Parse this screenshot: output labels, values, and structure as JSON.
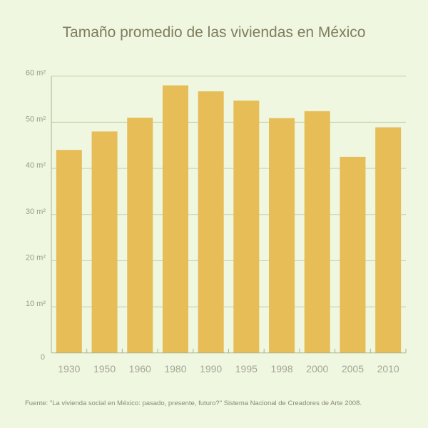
{
  "chart_data": {
    "type": "bar",
    "title": "Tamaño promedio de las viviendas en México",
    "categories": [
      "1930",
      "1950",
      "1960",
      "1980",
      "1990",
      "1995",
      "1998",
      "2000",
      "2005",
      "2010"
    ],
    "values": [
      44,
      48,
      51,
      58,
      56.7,
      54.7,
      50.9,
      52.4,
      42.5,
      48.9
    ],
    "unit": "m²",
    "ylim": [
      0,
      60
    ],
    "yticks": [
      {
        "value": 0,
        "label": "0"
      },
      {
        "value": 10,
        "label": "10 m²"
      },
      {
        "value": 20,
        "label": "20 m²"
      },
      {
        "value": 30,
        "label": "30 m²"
      },
      {
        "value": 40,
        "label": "40 m²"
      },
      {
        "value": 50,
        "label": "50 m²"
      },
      {
        "value": 60,
        "label": "60 m²"
      }
    ],
    "grid": true,
    "bar_color": "#e6bd57",
    "grid_color": "#c5cfa8",
    "source": "Fuente: \"La vivienda social en México: pasado, presente, futuro?\" Sistema Nacional de Creadores de Arte 2008."
  }
}
